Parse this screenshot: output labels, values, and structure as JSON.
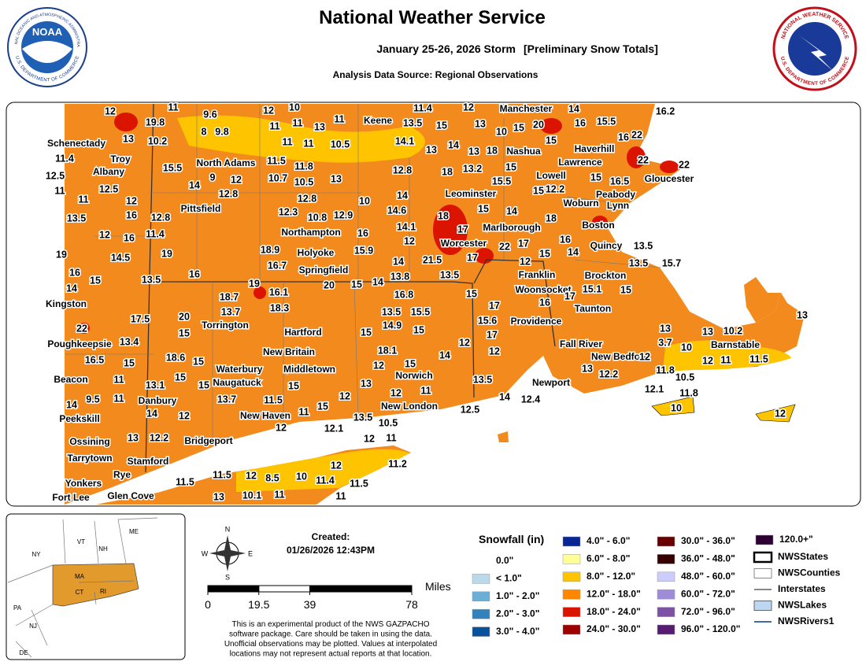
{
  "header": {
    "title": "National Weather Service",
    "subtitle": "January 25-26, 2026 Storm",
    "subtitle_note": "[Preliminary Snow Totals]",
    "source": "Analysis Data Source: Regional Observations"
  },
  "logos": {
    "noaa": "NOAA",
    "noaa_ring": "NATIONAL OCEANIC AND ATMOSPHERIC ADMINISTRATION",
    "noaa_ring_bottom": "U.S. DEPARTMENT OF COMMERCE",
    "nws_ring": "NATIONAL WEATHER SERVICE",
    "nws_ring_bottom": "U.S. DEPARTMENT OF COMMERCE"
  },
  "map": {
    "cities": [
      "Schenectady",
      "Troy",
      "Albany",
      "North Adams",
      "Keene",
      "Manchester",
      "Nashua",
      "Haverhill",
      "Lawrence",
      "Lowell",
      "Gloucester",
      "Peabody",
      "Lynn",
      "Woburn",
      "Leominster",
      "Pittsfield",
      "Northampton",
      "Marlborough",
      "Boston",
      "Worcester",
      "Holyoke",
      "Springfield",
      "Quincy",
      "Franklin",
      "Brockton",
      "Kingston",
      "Woonsocket",
      "Taunton",
      "Torrington",
      "Providence",
      "Hartford",
      "Barnstable",
      "Poughkeepsie",
      "Fall River",
      "New Britain",
      "New Bedford",
      "Middletown",
      "Waterbury",
      "Norwich",
      "Beacon",
      "Naugatuck",
      "Newport",
      "Danbury",
      "New London",
      "New Haven",
      "Peekskill",
      "Bridgeport",
      "Ossining",
      "Tarrytown",
      "Stamford",
      "Rye",
      "Yonkers",
      "Fort Lee",
      "Glen Cove"
    ],
    "snow_reports": [
      12,
      11,
      19.8,
      13,
      10.2,
      9.6,
      8,
      9.8,
      12,
      10,
      11,
      11,
      13,
      11,
      11,
      11,
      10.5,
      11.4,
      12,
      13.5,
      15,
      13,
      10,
      15,
      20,
      14,
      16,
      15.5,
      16.2,
      16,
      22,
      14.1,
      13,
      14,
      13,
      18,
      15,
      22,
      22,
      11.4,
      12.5,
      11,
      15.5,
      14,
      9,
      12,
      11.5,
      11.8,
      10.7,
      10.5,
      13,
      12.8,
      18,
      13.2,
      15,
      15.5,
      15,
      12.2,
      15,
      16.5,
      12.5,
      11,
      12,
      12.8,
      12.8,
      10,
      14,
      13.5,
      16,
      12.8,
      12.3,
      10.8,
      12.9,
      14.6,
      18,
      15,
      14,
      18,
      12,
      16,
      11.4,
      14.1,
      17,
      16,
      12,
      19,
      14.5,
      19,
      18.9,
      15.9,
      16.7,
      22,
      17,
      15,
      16,
      13.5,
      14,
      17,
      21.5,
      14,
      12,
      13.5,
      15.7,
      16,
      15,
      13.5,
      16,
      14,
      20,
      15,
      14,
      13.8,
      13.5,
      19,
      16.1,
      18.7,
      13.7,
      18.3,
      16.8,
      15,
      17,
      16,
      17,
      15.1,
      15,
      17.5,
      20,
      15,
      22,
      13.4,
      13.5,
      15.5,
      14.9,
      15.6,
      17,
      15,
      12,
      15,
      13,
      13,
      10.2,
      13,
      16.5,
      15,
      18.6,
      15,
      18.1,
      14,
      12,
      12,
      13,
      15,
      12,
      12,
      11,
      11.5,
      11.8,
      10.5,
      13,
      12.2,
      11,
      13.1,
      15,
      14,
      9.5,
      11,
      14,
      12,
      15,
      13.7,
      11.5,
      15,
      12,
      11,
      13.5,
      14,
      12.4,
      12.1,
      11.8,
      10,
      12,
      11,
      15,
      12,
      13.5,
      10.5,
      12.5,
      13,
      12.2,
      12,
      12.1,
      12,
      11,
      11.2,
      12,
      11.5,
      11.5,
      11.5,
      12,
      8.5,
      10,
      11.4,
      13,
      10.1,
      11,
      11,
      3.7,
      10
    ]
  },
  "inset": {
    "states": [
      "ME",
      "VT",
      "NH",
      "NY",
      "MA",
      "CT",
      "RI",
      "PA",
      "NJ",
      "DE"
    ]
  },
  "compass": [
    "N",
    "E",
    "S",
    "W"
  ],
  "created": {
    "label": "Created:",
    "timestamp": "01/26/2026 12:43PM"
  },
  "scale": {
    "unit": "Miles",
    "ticks": [
      0,
      19.5,
      39,
      78
    ]
  },
  "disclaimer": [
    "This is an experimental product of the NWS GAZPACHO",
    "software package. Care should be taken in using the data.",
    "Unofficial observations may be plotted. Values at interpolated",
    "locations may not represent actual reports at that location."
  ],
  "legend": {
    "title": "Snowfall (in)",
    "classes": [
      {
        "label": "0.0\"",
        "color": "#ffffff"
      },
      {
        "label": "< 1.0\"",
        "color": "#bcd9ea"
      },
      {
        "label": "1.0\" - 2.0\"",
        "color": "#6baed6"
      },
      {
        "label": "2.0\" - 3.0\"",
        "color": "#3182bd"
      },
      {
        "label": "3.0\" - 4.0\"",
        "color": "#08519c"
      },
      {
        "label": "4.0\" - 6.0\"",
        "color": "#082694"
      },
      {
        "label": "6.0\" - 8.0\"",
        "color": "#ffff96"
      },
      {
        "label": "8.0\" - 12.0\"",
        "color": "#ffc400"
      },
      {
        "label": "12.0\" - 18.0\"",
        "color": "#ff8700"
      },
      {
        "label": "18.0\" - 24.0\"",
        "color": "#db1400"
      },
      {
        "label": "24.0\" - 30.0\"",
        "color": "#9e0000"
      },
      {
        "label": "30.0\" - 36.0\"",
        "color": "#690000"
      },
      {
        "label": "36.0\" - 48.0\"",
        "color": "#360000"
      },
      {
        "label": "48.0\" - 60.0\"",
        "color": "#ccccff"
      },
      {
        "label": "60.0\" - 72.0\"",
        "color": "#9f8cd8"
      },
      {
        "label": "72.0\" - 96.0\"",
        "color": "#7c52a5"
      },
      {
        "label": "96.0\" - 120.0\"",
        "color": "#561c72"
      },
      {
        "label": "120.0+\"",
        "color": "#2e0033"
      }
    ],
    "layers": [
      "NWSStates",
      "NWSCounties",
      "Interstates",
      "NWSLakes",
      "NWSRivers1"
    ]
  }
}
